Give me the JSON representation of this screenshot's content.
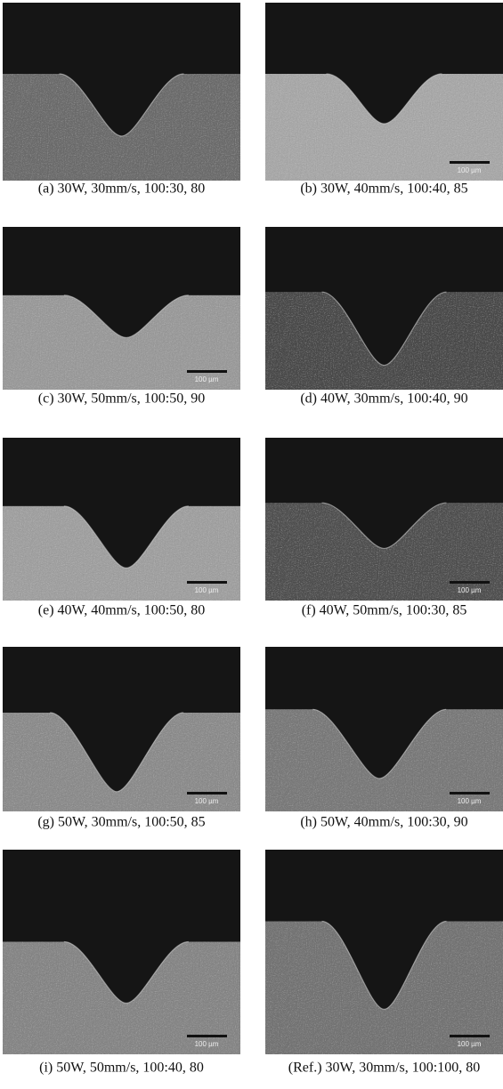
{
  "panels": [
    {
      "caption": "(a) 30W, 30mm/s, 100:30, 80"
    },
    {
      "caption": "(b) 30W, 40mm/s, 100:40, 85",
      "scale_bar": "100 µm"
    },
    {
      "caption": "(c) 30W, 50mm/s, 100:50, 90",
      "scale_bar": "100 µm"
    },
    {
      "caption": "(d) 40W, 30mm/s, 100:40, 90"
    },
    {
      "caption": "(e) 40W, 40mm/s, 100:50, 80",
      "scale_bar": "100 µm"
    },
    {
      "caption": "(f) 40W, 50mm/s, 100:30, 85",
      "scale_bar": "100 µm"
    },
    {
      "caption": "(g) 50W, 30mm/s, 100:50, 85",
      "scale_bar": "100 µm"
    },
    {
      "caption": "(h) 50W, 40mm/s, 100:30, 90",
      "scale_bar": "100 µm"
    },
    {
      "caption": "(i) 50W, 50mm/s, 100:40, 80",
      "scale_bar": "100 µm"
    },
    {
      "caption": "(Ref.) 30W, 30mm/s, 100:100, 80",
      "scale_bar": "100 µm"
    }
  ]
}
